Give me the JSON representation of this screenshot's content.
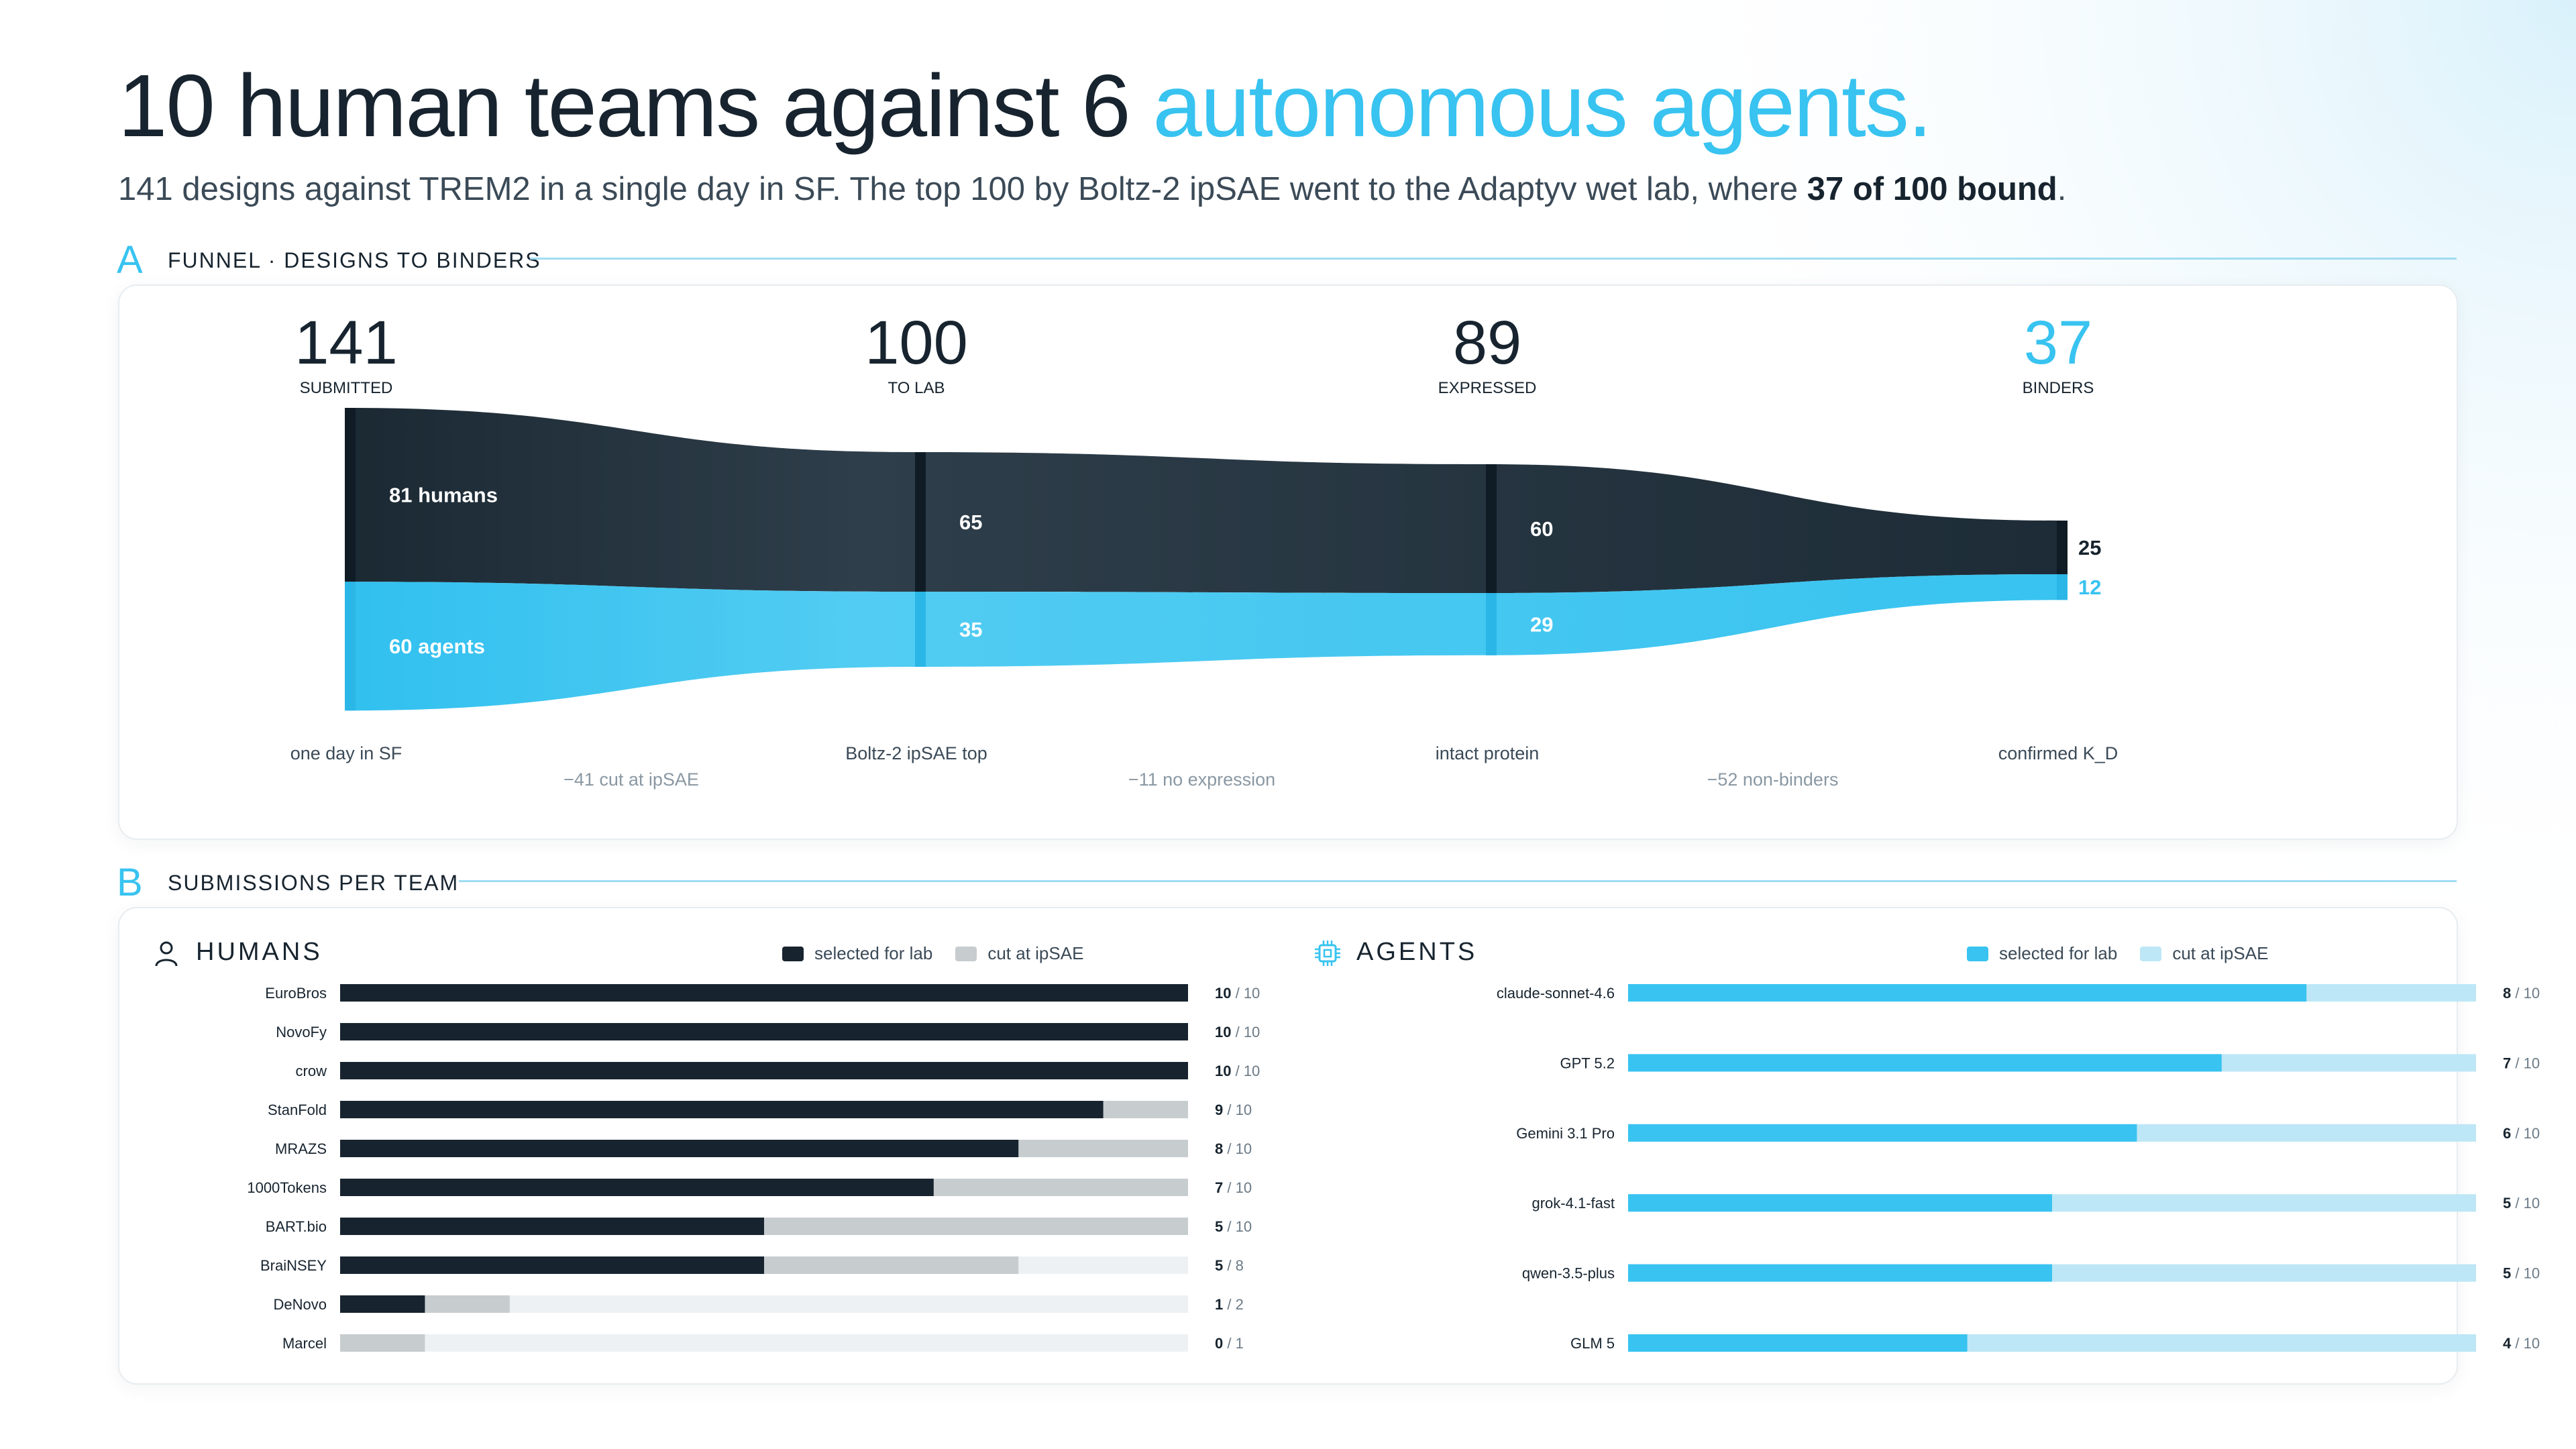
{
  "header": {
    "title_main": "10 human teams against 6",
    "title_accent": "autonomous agents.",
    "subtitle_main": "141 designs against TREM2 in a single day in SF. The top 100 by Boltz-2 ipSAE went to the Adaptyv wet lab, where",
    "subtitle_bold": "37 of 100 bound",
    "subtitle_end": "."
  },
  "sections": {
    "a": {
      "letter": "A",
      "label": "FUNNEL · DESIGNS TO BINDERS"
    },
    "b": {
      "letter": "B",
      "label": "SUBMISSIONS PER TEAM"
    }
  },
  "colors": {
    "dark": "#17242f",
    "accent": "#38c3f0",
    "grey_cut": "#c7cccf",
    "track": "#eef1f3",
    "accent_light": "#bde7f6"
  },
  "chart_data": [
    {
      "type": "sankey",
      "stages": [
        {
          "value": "141",
          "label": "SUBMITTED",
          "caption": "one day in SF",
          "accent": false
        },
        {
          "value": "100",
          "label": "TO LAB",
          "caption": "Boltz-2 ipSAE top",
          "accent": false
        },
        {
          "value": "89",
          "label": "EXPRESSED",
          "caption": "intact protein",
          "accent": false
        },
        {
          "value": "37",
          "label": "BINDERS",
          "caption": "confirmed K_D",
          "accent": true
        }
      ],
      "series": [
        {
          "name": "humans",
          "values": [
            81,
            65,
            60,
            25
          ],
          "labels": [
            "81 humans",
            "65",
            "60",
            "25"
          ]
        },
        {
          "name": "agents",
          "values": [
            60,
            35,
            29,
            12
          ],
          "labels": [
            "60 agents",
            "35",
            "29",
            "12"
          ]
        }
      ],
      "drops": [
        "−41 cut at ipSAE",
        "−11 no expression",
        "−52 non-binders"
      ]
    },
    {
      "type": "bar",
      "panel": "HUMANS",
      "icon": "person-icon",
      "legend": [
        "selected for lab",
        "cut at ipSAE"
      ],
      "teams": [
        {
          "name": "EuroBros",
          "selected": 10,
          "submitted": 10
        },
        {
          "name": "NovoFy",
          "selected": 10,
          "submitted": 10
        },
        {
          "name": "crow",
          "selected": 10,
          "submitted": 10
        },
        {
          "name": "StanFold",
          "selected": 9,
          "submitted": 10
        },
        {
          "name": "MRAZS",
          "selected": 8,
          "submitted": 10
        },
        {
          "name": "1000Tokens",
          "selected": 7,
          "submitted": 10
        },
        {
          "name": "BART.bio",
          "selected": 5,
          "submitted": 10
        },
        {
          "name": "BraiNSEY",
          "selected": 5,
          "submitted": 8
        },
        {
          "name": "DeNovo",
          "selected": 1,
          "submitted": 2
        },
        {
          "name": "Marcel",
          "selected": 0,
          "submitted": 1
        }
      ],
      "xlim": [
        0,
        10
      ]
    },
    {
      "type": "bar",
      "panel": "AGENTS",
      "icon": "chip-icon",
      "legend": [
        "selected for lab",
        "cut at ipSAE"
      ],
      "teams": [
        {
          "name": "claude-sonnet-4.6",
          "selected": 8,
          "submitted": 10
        },
        {
          "name": "GPT 5.2",
          "selected": 7,
          "submitted": 10
        },
        {
          "name": "Gemini 3.1 Pro",
          "selected": 6,
          "submitted": 10
        },
        {
          "name": "grok-4.1-fast",
          "selected": 5,
          "submitted": 10
        },
        {
          "name": "qwen-3.5-plus",
          "selected": 5,
          "submitted": 10
        },
        {
          "name": "GLM 5",
          "selected": 4,
          "submitted": 10
        }
      ],
      "xlim": [
        0,
        10
      ]
    }
  ]
}
